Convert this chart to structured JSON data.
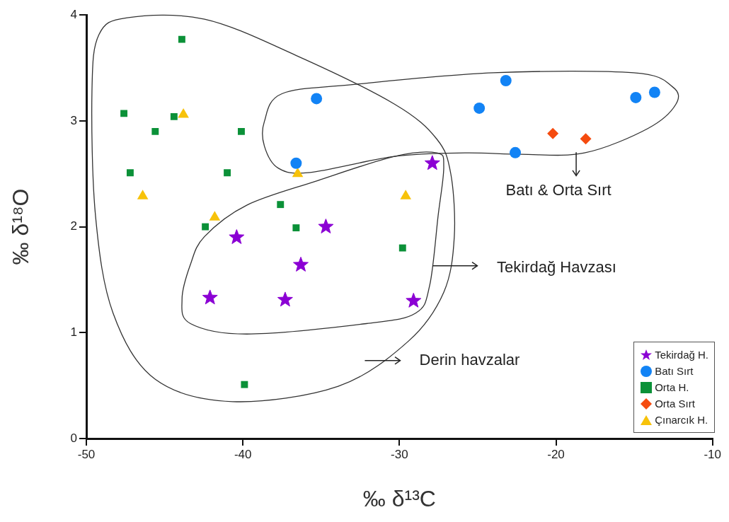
{
  "chart_data": {
    "type": "scatter",
    "xlabel": "‰ δ¹³C",
    "ylabel": "‰ δ¹⁸O",
    "xlim": [
      -50,
      -10
    ],
    "xticks": [
      -50,
      -40,
      -30,
      -20,
      -10
    ],
    "ylim": [
      0,
      4
    ],
    "yticks": [
      0,
      1,
      2,
      3,
      4
    ],
    "grid": false,
    "legend": "bottom right",
    "series": [
      {
        "name": "Tekirdağ H.",
        "color": "#8b00d4",
        "marker": "star",
        "x": [
          -27.9,
          -40.4,
          -34.7,
          -36.3,
          -42.1,
          -37.3,
          -29.1
        ],
        "values": [
          2.6,
          1.9,
          2.0,
          1.64,
          1.33,
          1.31,
          1.3
        ]
      },
      {
        "name": "Batı Sırt",
        "color": "#1283f5",
        "marker": "circle",
        "x": [
          -35.3,
          -36.6,
          -24.9,
          -23.2,
          -22.6,
          -14.9,
          -13.7
        ],
        "values": [
          3.21,
          2.6,
          3.12,
          3.38,
          2.7,
          3.22,
          3.27
        ]
      },
      {
        "name": "Orta H.",
        "color": "#0b9138",
        "marker": "square",
        "x": [
          -43.9,
          -47.6,
          -44.4,
          -45.6,
          -40.1,
          -47.2,
          -41.0,
          -37.6,
          -42.4,
          -36.6,
          -29.8,
          -39.9
        ],
        "values": [
          3.77,
          3.07,
          3.04,
          2.9,
          2.9,
          2.51,
          2.51,
          2.21,
          2.0,
          1.99,
          1.8,
          0.51
        ]
      },
      {
        "name": "Orta Sırt",
        "color": "#f54b0f",
        "marker": "diamond",
        "x": [
          -20.2,
          -18.1
        ],
        "values": [
          2.88,
          2.83
        ]
      },
      {
        "name": "Çınarcık H.",
        "color": "#f7c20a",
        "marker": "triangle",
        "x": [
          -43.8,
          -46.4,
          -41.8,
          -36.5,
          -29.6
        ],
        "values": [
          3.06,
          2.29,
          2.09,
          2.5,
          2.29
        ]
      }
    ],
    "annotations": [
      "Batı & Orta Sırt",
      "Tekirdağ Havzası",
      "Derin havzalar"
    ]
  }
}
